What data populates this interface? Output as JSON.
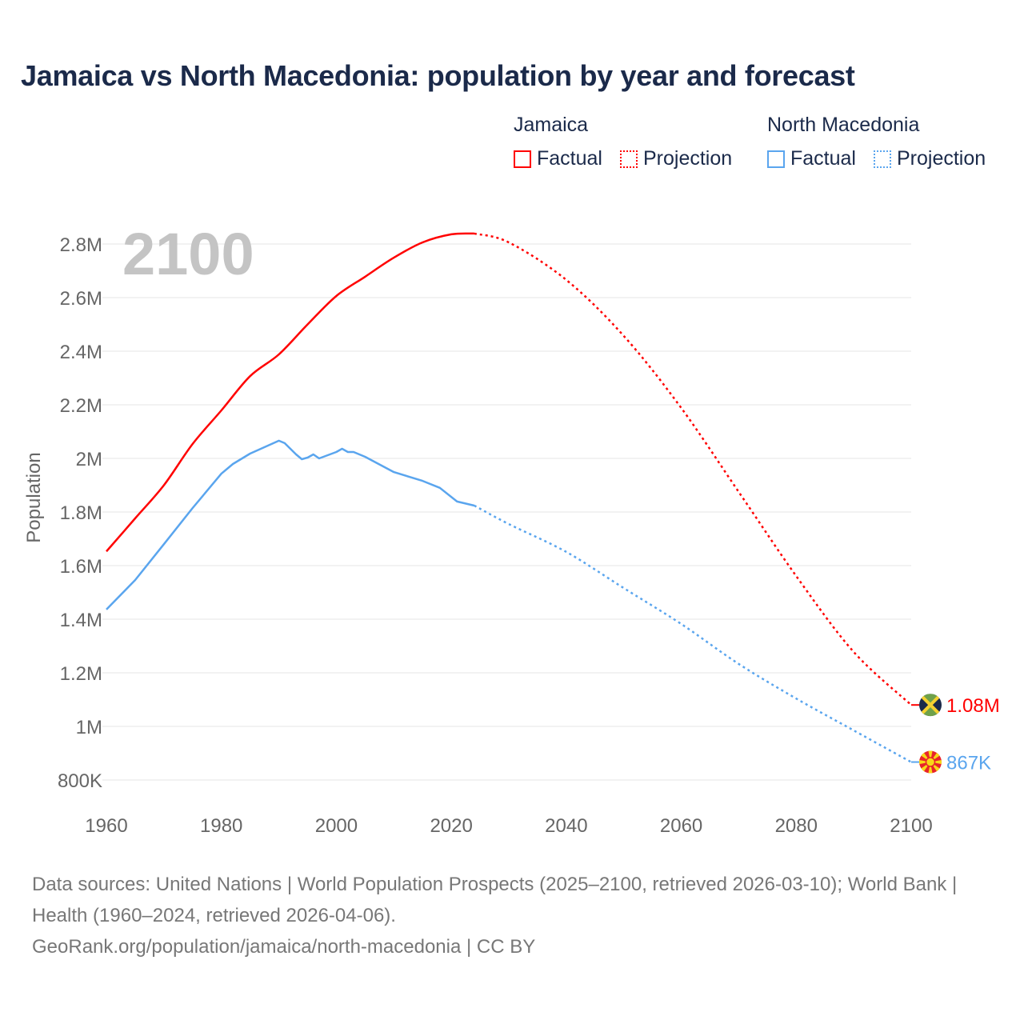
{
  "title": "Jamaica vs North Macedonia: population by year and forecast",
  "legend": {
    "groups": [
      {
        "name": "Jamaica",
        "factual": "Factual",
        "projection": "Projection",
        "color": "#ff0000"
      },
      {
        "name": "North Macedonia",
        "factual": "Factual",
        "projection": "Projection",
        "color": "#5aa5ee"
      }
    ]
  },
  "year_watermark": "2100",
  "footer": {
    "sources": "Data sources: United Nations | World Population Prospects (2025–2100, retrieved 2026-03-10); World Bank | Health (1960–2024, retrieved 2026-04-06).",
    "link": "GeoRank.org/population/jamaica/north-macedonia | CC BY"
  },
  "chart_data": {
    "type": "line",
    "title": "Jamaica vs North Macedonia: population by year and forecast",
    "xlabel": "",
    "ylabel": "Population",
    "xlim": [
      1960,
      2100
    ],
    "ylim": [
      800000,
      2800000
    ],
    "x_ticks": [
      1960,
      1980,
      2000,
      2020,
      2040,
      2060,
      2080,
      2100
    ],
    "x_tick_labels": [
      "1960",
      "1980",
      "2000",
      "2020",
      "2040",
      "2060",
      "2080",
      "2100"
    ],
    "y_ticks": [
      800000,
      1000000,
      1200000,
      1400000,
      1600000,
      1800000,
      2000000,
      2200000,
      2400000,
      2600000,
      2800000
    ],
    "y_tick_labels": [
      "800K",
      "1M",
      "1.2M",
      "1.4M",
      "1.6M",
      "1.8M",
      "2M",
      "2.2M",
      "2.4M",
      "2.6M",
      "2.8M"
    ],
    "grid": true,
    "legend_position": "top-right",
    "series": [
      {
        "name": "Jamaica",
        "color": "#ff0000",
        "flag": "jamaica-flag",
        "end_label": "1.08M",
        "factual": [
          [
            1960,
            1653000
          ],
          [
            1965,
            1776000
          ],
          [
            1970,
            1900000
          ],
          [
            1975,
            2054000
          ],
          [
            1980,
            2179000
          ],
          [
            1985,
            2307000
          ],
          [
            1990,
            2388000
          ],
          [
            1995,
            2500000
          ],
          [
            2000,
            2606000
          ],
          [
            2005,
            2678000
          ],
          [
            2010,
            2749000
          ],
          [
            2015,
            2806000
          ],
          [
            2020,
            2836000
          ],
          [
            2024,
            2839000
          ]
        ],
        "projection": [
          [
            2024,
            2839000
          ],
          [
            2030,
            2806000
          ],
          [
            2040,
            2666000
          ],
          [
            2050,
            2457000
          ],
          [
            2060,
            2188000
          ],
          [
            2070,
            1875000
          ],
          [
            2080,
            1561000
          ],
          [
            2090,
            1278000
          ],
          [
            2100,
            1080000
          ]
        ]
      },
      {
        "name": "North Macedonia",
        "color": "#5aa5ee",
        "flag": "north-macedonia-flag",
        "end_label": "867K",
        "factual": [
          [
            1960,
            1436000
          ],
          [
            1965,
            1546000
          ],
          [
            1970,
            1680000
          ],
          [
            1975,
            1815000
          ],
          [
            1980,
            1943000
          ],
          [
            1982,
            1979000
          ],
          [
            1985,
            2018000
          ],
          [
            1990,
            2066000
          ],
          [
            1991,
            2057000
          ],
          [
            1993,
            2015000
          ],
          [
            1994,
            1997000
          ],
          [
            1995,
            2003000
          ],
          [
            1996,
            2015000
          ],
          [
            1997,
            2000000
          ],
          [
            2000,
            2024000
          ],
          [
            2001,
            2036000
          ],
          [
            2002,
            2024000
          ],
          [
            2003,
            2024000
          ],
          [
            2005,
            2006000
          ],
          [
            2010,
            1949000
          ],
          [
            2015,
            1916000
          ],
          [
            2018,
            1890000
          ],
          [
            2021,
            1839000
          ],
          [
            2024,
            1824000
          ]
        ],
        "projection": [
          [
            2024,
            1824000
          ],
          [
            2030,
            1755000
          ],
          [
            2040,
            1651000
          ],
          [
            2050,
            1516000
          ],
          [
            2060,
            1382000
          ],
          [
            2070,
            1233000
          ],
          [
            2080,
            1104000
          ],
          [
            2090,
            985000
          ],
          [
            2100,
            867000
          ]
        ]
      }
    ]
  }
}
